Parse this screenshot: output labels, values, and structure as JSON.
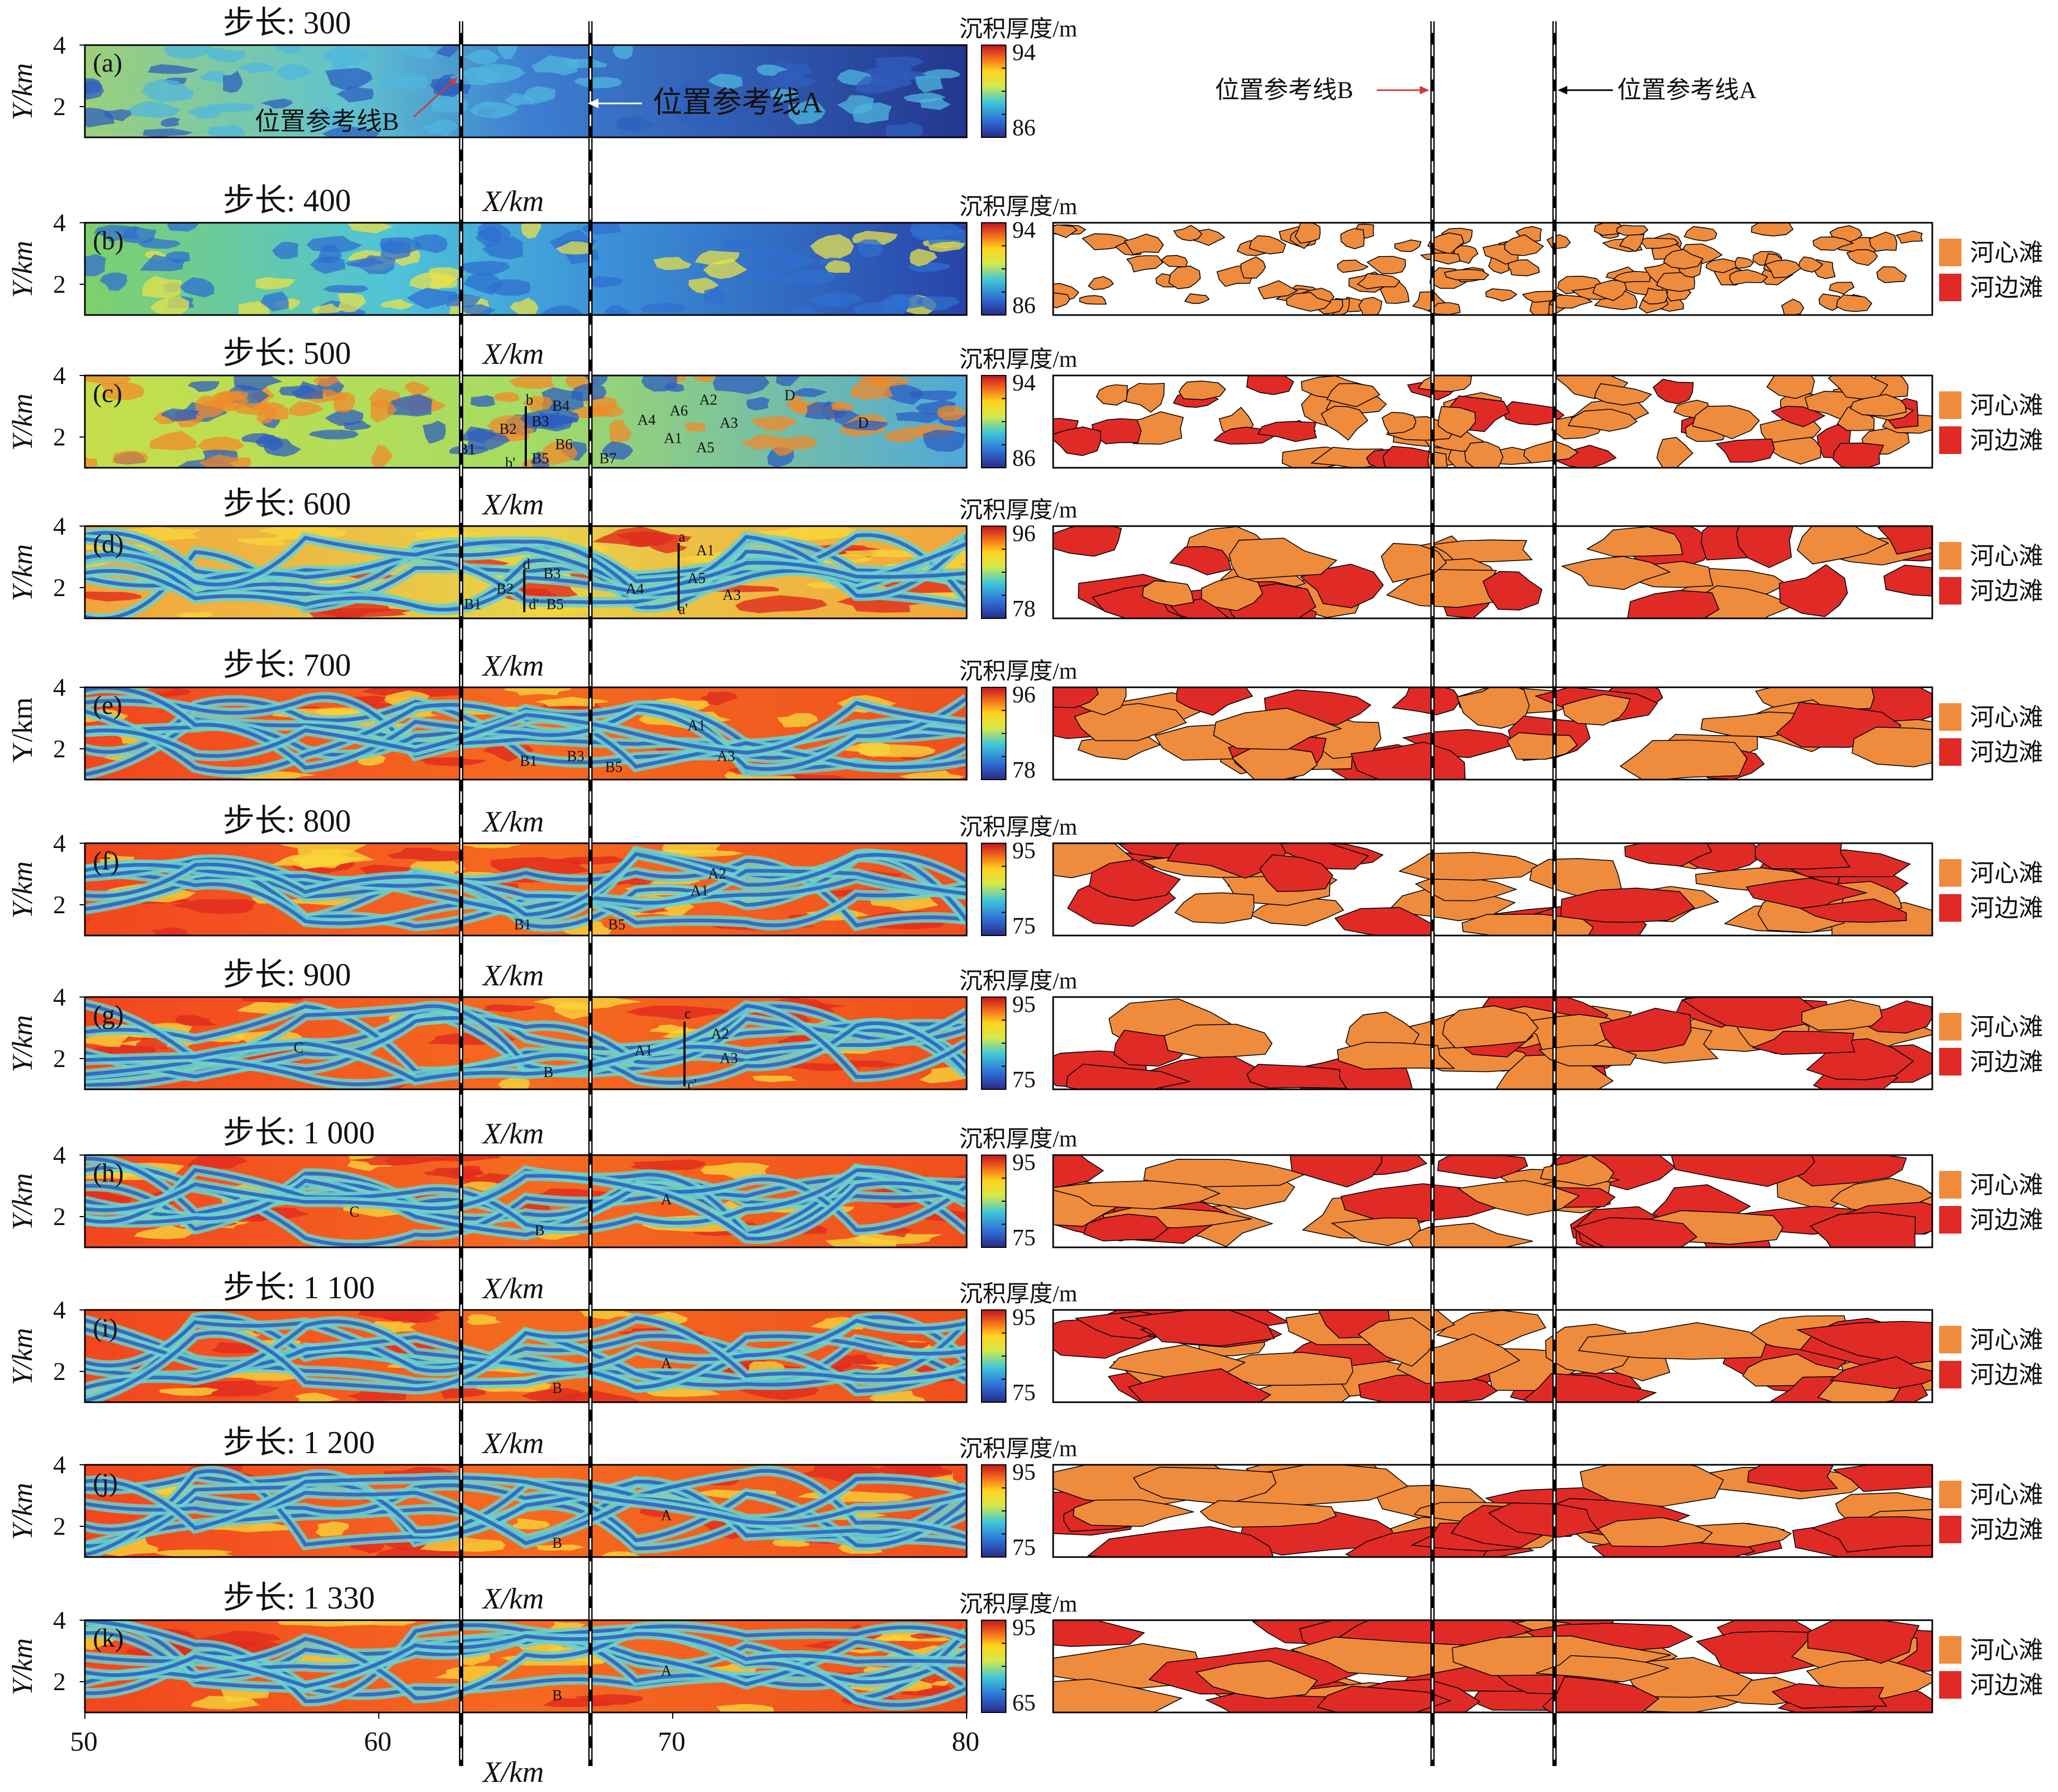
{
  "chart_data": {
    "type": "heatmap",
    "xlim": [
      50,
      80
    ],
    "ylim": [
      1,
      4
    ],
    "x_ticks": [
      50,
      60,
      70,
      80
    ],
    "y_ticks": [
      2,
      4
    ],
    "xlabel": "X/km",
    "ylabel_italic": "Y/km",
    "ylabel_plain": "Y/km",
    "colorbar_title": "沉积厚度/m",
    "reference_lines": [
      {
        "name": "位置参考线A",
        "x": 67.2,
        "color": "#000000"
      },
      {
        "name": "位置参考线B",
        "x": 62.8,
        "color": "#d23a3a"
      }
    ],
    "legend": [
      {
        "label": "河心滩",
        "color": "#ef8b3c"
      },
      {
        "label": "河边滩",
        "color": "#e02a26"
      }
    ],
    "panels": [
      {
        "letter": "(a)",
        "step": "步长: 300",
        "cb_top": "94",
        "cb_bottom": "86",
        "labels": [],
        "map": false
      },
      {
        "letter": "(b)",
        "step": "步长: 400",
        "cb_top": "94",
        "cb_bottom": "86",
        "labels": [],
        "map": true
      },
      {
        "letter": "(c)",
        "step": "步长: 500",
        "cb_top": "94",
        "cb_bottom": "86",
        "labels": [
          {
            "t": "B1",
            "x": 62.7,
            "y": 1.45
          },
          {
            "t": "B2",
            "x": 64.1,
            "y": 2.1
          },
          {
            "t": "B3",
            "x": 65.2,
            "y": 2.35
          },
          {
            "t": "B4",
            "x": 65.9,
            "y": 2.85
          },
          {
            "t": "B5",
            "x": 65.2,
            "y": 1.15
          },
          {
            "t": "B6",
            "x": 66.0,
            "y": 1.6
          },
          {
            "t": "B7",
            "x": 67.5,
            "y": 1.15
          },
          {
            "t": "A4",
            "x": 68.8,
            "y": 2.4
          },
          {
            "t": "A6",
            "x": 69.9,
            "y": 2.7
          },
          {
            "t": "A2",
            "x": 70.9,
            "y": 3.05
          },
          {
            "t": "A3",
            "x": 71.6,
            "y": 2.3
          },
          {
            "t": "A1",
            "x": 69.7,
            "y": 1.8
          },
          {
            "t": "A5",
            "x": 70.8,
            "y": 1.5
          },
          {
            "t": "D",
            "x": 73.8,
            "y": 3.2
          },
          {
            "t": "D",
            "x": 76.3,
            "y": 2.3
          },
          {
            "t": "b",
            "x": 65.0,
            "y": 3.05
          },
          {
            "t": "b'",
            "x": 64.3,
            "y": 1.0
          }
        ],
        "map": true
      },
      {
        "letter": "(d)",
        "step": "步长: 600",
        "cb_top": "96",
        "cb_bottom": "78",
        "labels": [
          {
            "t": "B1",
            "x": 62.9,
            "y": 1.3
          },
          {
            "t": "B2",
            "x": 64.0,
            "y": 1.8
          },
          {
            "t": "B3",
            "x": 65.6,
            "y": 2.3
          },
          {
            "t": "B5",
            "x": 65.7,
            "y": 1.3
          },
          {
            "t": "A4",
            "x": 68.4,
            "y": 1.8
          },
          {
            "t": "A1",
            "x": 70.8,
            "y": 3.05
          },
          {
            "t": "A5",
            "x": 70.5,
            "y": 2.15
          },
          {
            "t": "A3",
            "x": 71.7,
            "y": 1.6
          },
          {
            "t": "a",
            "x": 70.2,
            "y": 3.5
          },
          {
            "t": "a'",
            "x": 70.2,
            "y": 1.15
          },
          {
            "t": "d",
            "x": 64.9,
            "y": 2.6
          },
          {
            "t": "d'",
            "x": 65.1,
            "y": 1.3
          }
        ],
        "map": true
      },
      {
        "letter": "(e)",
        "step": "步长: 700",
        "cb_top": "96",
        "cb_bottom": "78",
        "labels": [
          {
            "t": "B1",
            "x": 64.8,
            "y": 1.45
          },
          {
            "t": "B3",
            "x": 66.4,
            "y": 1.6
          },
          {
            "t": "B5",
            "x": 67.7,
            "y": 1.25
          },
          {
            "t": "A1",
            "x": 70.5,
            "y": 2.6
          },
          {
            "t": "A3",
            "x": 71.5,
            "y": 1.6
          }
        ],
        "map": true
      },
      {
        "letter": "(f)",
        "step": "步长: 800",
        "cb_top": "95",
        "cb_bottom": "75",
        "labels": [
          {
            "t": "A2",
            "x": 71.2,
            "y": 2.85
          },
          {
            "t": "A1",
            "x": 70.6,
            "y": 2.3
          },
          {
            "t": "B1",
            "x": 64.6,
            "y": 1.2
          },
          {
            "t": "B5",
            "x": 67.8,
            "y": 1.2
          }
        ],
        "map": true
      },
      {
        "letter": "(g)",
        "step": "步长: 900",
        "cb_top": "95",
        "cb_bottom": "75",
        "labels": [
          {
            "t": "C",
            "x": 57.1,
            "y": 2.2
          },
          {
            "t": "B",
            "x": 65.6,
            "y": 1.4
          },
          {
            "t": "A1",
            "x": 68.7,
            "y": 2.1
          },
          {
            "t": "A2",
            "x": 71.3,
            "y": 2.65
          },
          {
            "t": "A3",
            "x": 71.6,
            "y": 1.85
          },
          {
            "t": "c",
            "x": 70.4,
            "y": 3.3
          },
          {
            "t": "c'",
            "x": 70.5,
            "y": 1.0
          }
        ],
        "map": true
      },
      {
        "letter": "(h)",
        "step": "步长: 1 000",
        "cb_top": "95",
        "cb_bottom": "75",
        "labels": [
          {
            "t": "C",
            "x": 59.0,
            "y": 2.0
          },
          {
            "t": "B",
            "x": 65.3,
            "y": 1.4
          },
          {
            "t": "A",
            "x": 69.6,
            "y": 2.4
          }
        ],
        "map": true
      },
      {
        "letter": "(i)",
        "step": "步长: 1 100",
        "cb_top": "95",
        "cb_bottom": "75",
        "labels": [
          {
            "t": "B",
            "x": 65.9,
            "y": 1.3
          },
          {
            "t": "A",
            "x": 69.6,
            "y": 2.1
          }
        ],
        "map": true
      },
      {
        "letter": "(j)",
        "step": "步长: 1 200",
        "cb_top": "95",
        "cb_bottom": "75",
        "labels": [
          {
            "t": "B",
            "x": 65.9,
            "y": 1.3
          },
          {
            "t": "A",
            "x": 69.6,
            "y": 2.2
          }
        ],
        "map": true
      },
      {
        "letter": "(k)",
        "step": "步长: 1 330",
        "cb_top": "95",
        "cb_bottom": "65",
        "labels": [
          {
            "t": "B",
            "x": 65.9,
            "y": 1.4
          },
          {
            "t": "A",
            "x": 69.6,
            "y": 2.2
          }
        ],
        "map": true
      }
    ]
  }
}
